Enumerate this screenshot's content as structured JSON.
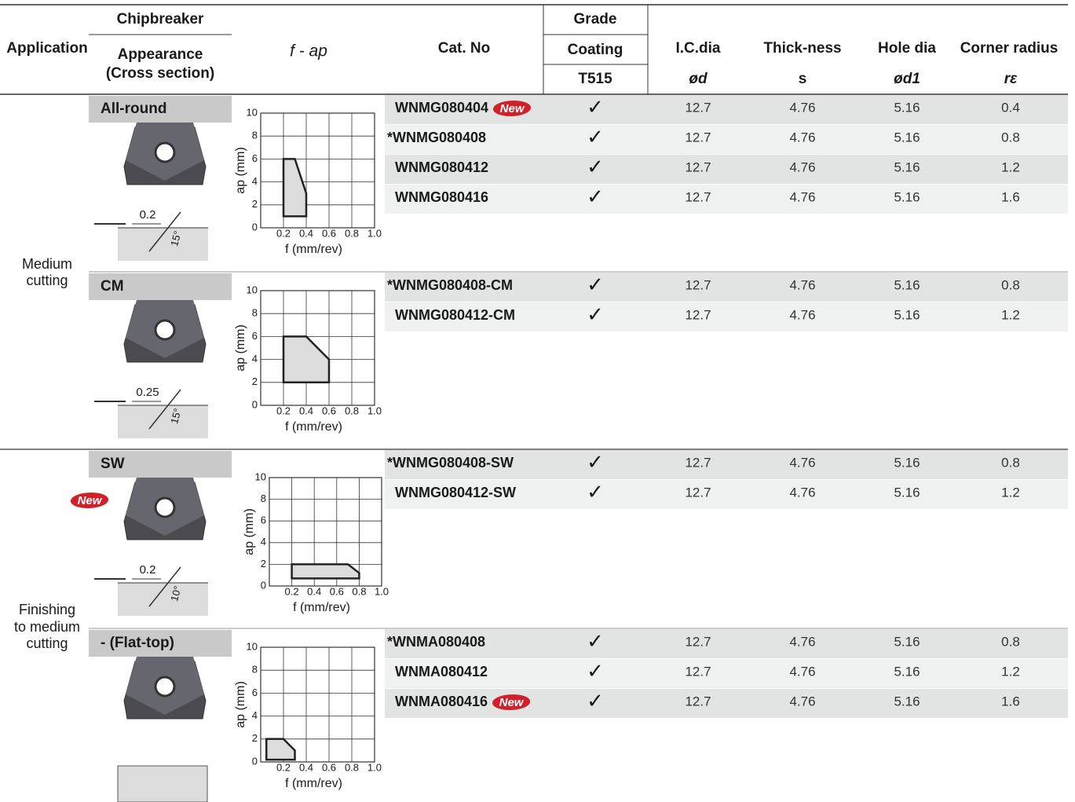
{
  "header": {
    "application": "Application",
    "chipbreaker": "Chipbreaker",
    "appearance": "Appearance",
    "cross_section": "(Cross section)",
    "f_ap": "f - ap",
    "cat_no": "Cat. No",
    "grade": "Grade",
    "coating": "Coating",
    "t515": "T515",
    "ic_dia": "I.C.dia",
    "thickness": "Thick-ness",
    "hole_dia": "Hole dia",
    "corner_radius": "Corner radius",
    "sym_d": "ød",
    "sym_s": "s",
    "sym_d1": "ød1",
    "sym_r": "rε"
  },
  "applications": [
    {
      "lines": [
        "Medium",
        "cutting"
      ]
    },
    {
      "lines": [
        "Finishing",
        "to medium",
        "cutting"
      ]
    }
  ],
  "groups": [
    {
      "name": "All-round",
      "section_dim": "0.2",
      "section_angle": "15°",
      "chart": {
        "xlim": [
          0,
          1
        ],
        "ylim": [
          0,
          10
        ],
        "xticks": [
          0.2,
          0.4,
          0.6,
          0.8,
          {
            "value": 1,
            "label": "1.0"
          }
        ],
        "yticks": [
          0,
          2,
          4,
          6,
          8,
          10
        ],
        "xlabel": "f (mm/rev)",
        "ylabel": "ap (mm)",
        "region": [
          [
            0.2,
            1
          ],
          [
            0.2,
            6
          ],
          [
            0.3,
            6
          ],
          [
            0.4,
            3
          ],
          [
            0.4,
            1
          ]
        ]
      },
      "rows": [
        {
          "cat_no": "WNMG080404",
          "badge": "New",
          "check": "✓",
          "ic": "12.7",
          "s": "4.76",
          "hole": "5.16",
          "r": "0.4"
        },
        {
          "cat_no": "*WNMG080408",
          "check": "✓",
          "ic": "12.7",
          "s": "4.76",
          "hole": "5.16",
          "r": "0.8"
        },
        {
          "cat_no": "WNMG080412",
          "check": "✓",
          "ic": "12.7",
          "s": "4.76",
          "hole": "5.16",
          "r": "1.2"
        },
        {
          "cat_no": "WNMG080416",
          "check": "✓",
          "ic": "12.7",
          "s": "4.76",
          "hole": "5.16",
          "r": "1.6"
        }
      ]
    },
    {
      "name": "CM",
      "section_dim": "0.25",
      "section_angle": "15°",
      "chart": {
        "xlim": [
          0,
          1
        ],
        "ylim": [
          0,
          10
        ],
        "xticks": [
          0.2,
          0.4,
          0.6,
          0.8,
          {
            "value": 1,
            "label": "1.0"
          }
        ],
        "yticks": [
          0,
          2,
          4,
          6,
          8,
          10
        ],
        "xlabel": "f (mm/rev)",
        "ylabel": "ap (mm)",
        "region": [
          [
            0.2,
            2
          ],
          [
            0.2,
            6
          ],
          [
            0.4,
            6
          ],
          [
            0.6,
            4
          ],
          [
            0.6,
            2
          ]
        ]
      },
      "rows": [
        {
          "cat_no": "*WNMG080408-CM",
          "check": "✓",
          "ic": "12.7",
          "s": "4.76",
          "hole": "5.16",
          "r": "0.8"
        },
        {
          "cat_no": "WNMG080412-CM",
          "check": "✓",
          "ic": "12.7",
          "s": "4.76",
          "hole": "5.16",
          "r": "1.2"
        }
      ]
    },
    {
      "name": "SW",
      "badge": "New",
      "section_dim": "0.2",
      "section_angle": "10°",
      "chart": {
        "xlim": [
          0,
          1
        ],
        "ylim": [
          0,
          10
        ],
        "xticks": [
          0.2,
          0.4,
          0.6,
          0.8,
          {
            "value": 1,
            "label": "1.0"
          }
        ],
        "yticks": [
          0,
          2,
          4,
          6,
          8,
          10
        ],
        "xlabel": "f (mm/rev)",
        "ylabel": "ap (mm)",
        "region": [
          [
            0.2,
            0.7
          ],
          [
            0.2,
            2
          ],
          [
            0.7,
            2
          ],
          [
            0.8,
            1.2
          ],
          [
            0.8,
            0.7
          ]
        ]
      },
      "rows": [
        {
          "cat_no": "*WNMG080408-SW",
          "check": "✓",
          "ic": "12.7",
          "s": "4.76",
          "hole": "5.16",
          "r": "0.8"
        },
        {
          "cat_no": "WNMG080412-SW",
          "check": "✓",
          "ic": "12.7",
          "s": "4.76",
          "hole": "5.16",
          "r": "1.2"
        }
      ]
    },
    {
      "name": "- (Flat-top)",
      "chart": {
        "xlim": [
          0,
          1
        ],
        "ylim": [
          0,
          10
        ],
        "xticks": [
          0.2,
          0.4,
          0.6,
          0.8,
          {
            "value": 1,
            "label": "1.0"
          }
        ],
        "yticks": [
          0,
          2,
          4,
          6,
          8,
          10
        ],
        "xlabel": "f (mm/rev)",
        "ylabel": "ap (mm)",
        "region": [
          [
            0.05,
            0.2
          ],
          [
            0.05,
            2
          ],
          [
            0.2,
            2
          ],
          [
            0.3,
            1
          ],
          [
            0.3,
            0.2
          ]
        ]
      },
      "rows": [
        {
          "cat_no": "*WNMA080408",
          "check": "✓",
          "ic": "12.7",
          "s": "4.76",
          "hole": "5.16",
          "r": "0.8"
        },
        {
          "cat_no": "WNMA080412",
          "check": "✓",
          "ic": "12.7",
          "s": "4.76",
          "hole": "5.16",
          "r": "1.2"
        },
        {
          "cat_no": "WNMA080416",
          "badge": "New",
          "check": "✓",
          "ic": "12.7",
          "s": "4.76",
          "hole": "5.16",
          "r": "1.6"
        }
      ]
    }
  ]
}
